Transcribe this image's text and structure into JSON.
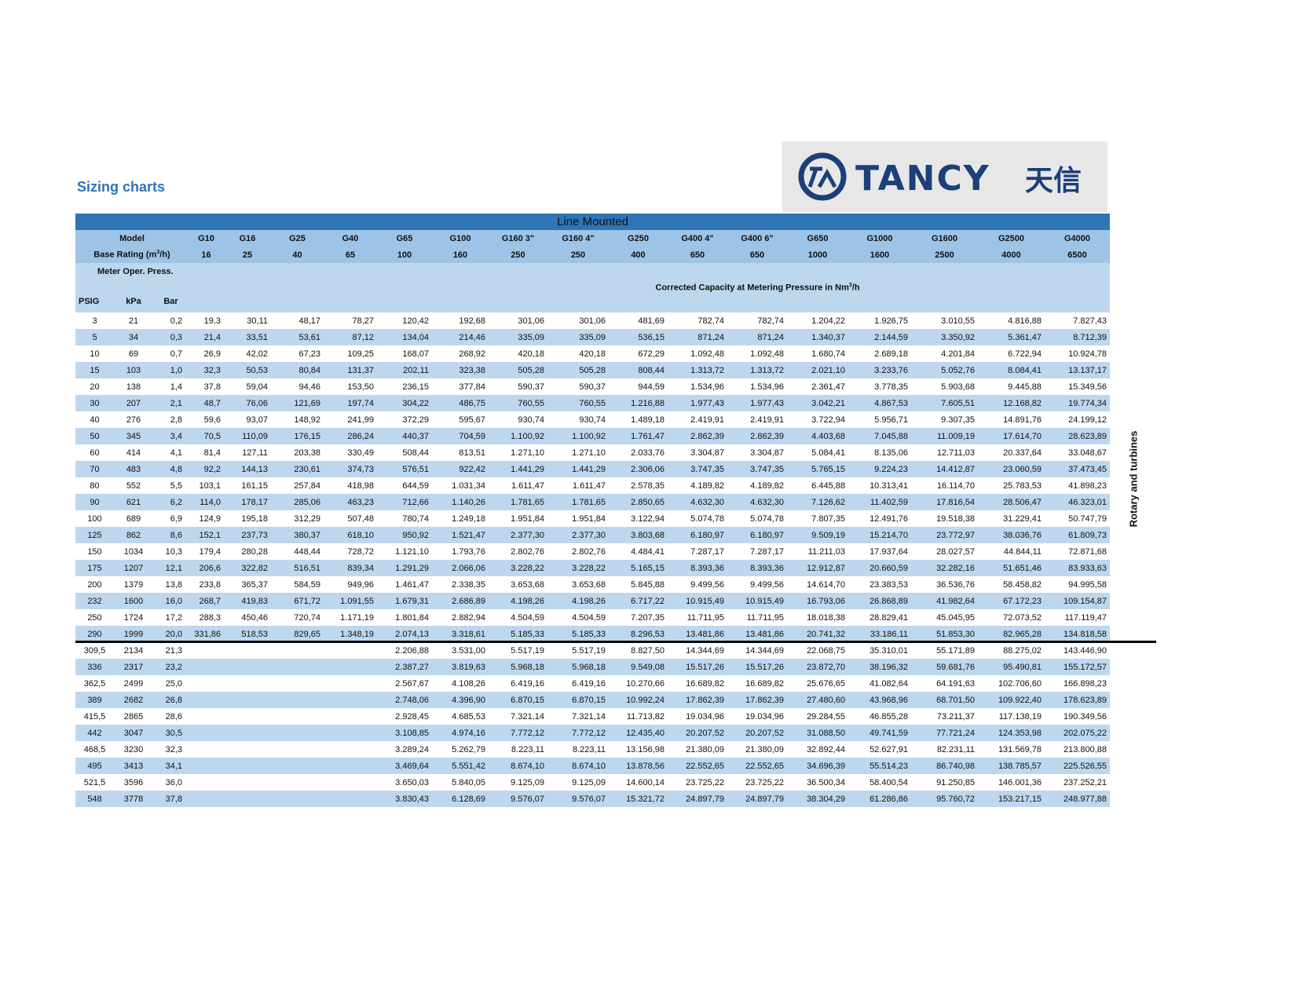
{
  "page_title": "Sizing charts",
  "logo": {
    "text": "TANCY 天信",
    "color": "#1c3f7a"
  },
  "side_label": "Rotary and turbines",
  "table": {
    "band_title": "Line Mounted",
    "model_label": "Model",
    "base_rating_label": "Base Rating (m³/h)",
    "models": [
      "G10",
      "G16",
      "G25",
      "G40",
      "G65",
      "G100",
      "G160 3\"",
      "G160 4\"",
      "G250",
      "G400 4\"",
      "G400 6\"",
      "G650",
      "G1000",
      "G1600",
      "G2500",
      "G4000"
    ],
    "base_ratings": [
      "16",
      "25",
      "40",
      "65",
      "100",
      "160",
      "250",
      "250",
      "400",
      "650",
      "650",
      "1000",
      "1600",
      "2500",
      "4000",
      "6500"
    ],
    "meter_oper_label": "Meter Oper. Press.",
    "col_psig": "PSIG",
    "col_kpa": "kPa",
    "col_bar": "Bar",
    "corrected_label": "Corrected Capacity at Metering Pressure in Nm³/h",
    "rows": [
      [
        "3",
        "21",
        "0,2",
        "19,3",
        "30,11",
        "48,17",
        "78,27",
        "120,42",
        "192,68",
        "301,06",
        "301,06",
        "481,69",
        "782,74",
        "782,74",
        "1.204,22",
        "1.926,75",
        "3.010,55",
        "4.816,88",
        "7.827,43"
      ],
      [
        "5",
        "34",
        "0,3",
        "21,4",
        "33,51",
        "53,61",
        "87,12",
        "134,04",
        "214,46",
        "335,09",
        "335,09",
        "536,15",
        "871,24",
        "871,24",
        "1.340,37",
        "2.144,59",
        "3.350,92",
        "5.361,47",
        "8.712,39"
      ],
      [
        "10",
        "69",
        "0,7",
        "26,9",
        "42,02",
        "67,23",
        "109,25",
        "168,07",
        "268,92",
        "420,18",
        "420,18",
        "672,29",
        "1.092,48",
        "1.092,48",
        "1.680,74",
        "2.689,18",
        "4.201,84",
        "6.722,94",
        "10.924,78"
      ],
      [
        "15",
        "103",
        "1,0",
        "32,3",
        "50,53",
        "80,84",
        "131,37",
        "202,11",
        "323,38",
        "505,28",
        "505,28",
        "808,44",
        "1.313,72",
        "1.313,72",
        "2.021,10",
        "3.233,76",
        "5.052,76",
        "8.084,41",
        "13.137,17"
      ],
      [
        "20",
        "138",
        "1,4",
        "37,8",
        "59,04",
        "94,46",
        "153,50",
        "236,15",
        "377,84",
        "590,37",
        "590,37",
        "944,59",
        "1.534,96",
        "1.534,96",
        "2.361,47",
        "3.778,35",
        "5.903,68",
        "9.445,88",
        "15.349,56"
      ],
      [
        "30",
        "207",
        "2,1",
        "48,7",
        "76,06",
        "121,69",
        "197,74",
        "304,22",
        "486,75",
        "760,55",
        "760,55",
        "1.216,88",
        "1.977,43",
        "1.977,43",
        "3.042,21",
        "4.867,53",
        "7.605,51",
        "12.168,82",
        "19.774,34"
      ],
      [
        "40",
        "276",
        "2,8",
        "59,6",
        "93,07",
        "148,92",
        "241,99",
        "372,29",
        "595,67",
        "930,74",
        "930,74",
        "1.489,18",
        "2.419,91",
        "2.419,91",
        "3.722,94",
        "5.956,71",
        "9.307,35",
        "14.891,76",
        "24.199,12"
      ],
      [
        "50",
        "345",
        "3,4",
        "70,5",
        "110,09",
        "176,15",
        "286,24",
        "440,37",
        "704,59",
        "1.100,92",
        "1.100,92",
        "1.761,47",
        "2.862,39",
        "2.862,39",
        "4.403,68",
        "7.045,88",
        "11.009,19",
        "17.614,70",
        "28.623,89"
      ],
      [
        "60",
        "414",
        "4,1",
        "81,4",
        "127,11",
        "203,38",
        "330,49",
        "508,44",
        "813,51",
        "1.271,10",
        "1.271,10",
        "2.033,76",
        "3.304,87",
        "3.304,87",
        "5.084,41",
        "8.135,06",
        "12.711,03",
        "20.337,64",
        "33.048,67"
      ],
      [
        "70",
        "483",
        "4,8",
        "92,2",
        "144,13",
        "230,61",
        "374,73",
        "576,51",
        "922,42",
        "1.441,29",
        "1.441,29",
        "2.306,06",
        "3.747,35",
        "3.747,35",
        "5.765,15",
        "9.224,23",
        "14.412,87",
        "23.060,59",
        "37.473,45"
      ],
      [
        "80",
        "552",
        "5,5",
        "103,1",
        "161,15",
        "257,84",
        "418,98",
        "644,59",
        "1.031,34",
        "1.611,47",
        "1.611,47",
        "2.578,35",
        "4.189,82",
        "4.189,82",
        "6.445,88",
        "10.313,41",
        "16.114,70",
        "25.783,53",
        "41.898,23"
      ],
      [
        "90",
        "621",
        "6,2",
        "114,0",
        "178,17",
        "285,06",
        "463,23",
        "712,66",
        "1.140,26",
        "1.781,65",
        "1.781,65",
        "2.850,65",
        "4.632,30",
        "4.632,30",
        "7.126,62",
        "11.402,59",
        "17.816,54",
        "28.506,47",
        "46.323,01"
      ],
      [
        "100",
        "689",
        "6,9",
        "124,9",
        "195,18",
        "312,29",
        "507,48",
        "780,74",
        "1.249,18",
        "1.951,84",
        "1.951,84",
        "3.122,94",
        "5.074,78",
        "5.074,78",
        "7.807,35",
        "12.491,76",
        "19.518,38",
        "31.229,41",
        "50.747,79"
      ],
      [
        "125",
        "862",
        "8,6",
        "152,1",
        "237,73",
        "380,37",
        "618,10",
        "950,92",
        "1.521,47",
        "2.377,30",
        "2.377,30",
        "3.803,68",
        "6.180,97",
        "6.180,97",
        "9.509,19",
        "15.214,70",
        "23.772,97",
        "38.036,76",
        "61.809,73"
      ],
      [
        "150",
        "1034",
        "10,3",
        "179,4",
        "280,28",
        "448,44",
        "728,72",
        "1.121,10",
        "1.793,76",
        "2.802,76",
        "2.802,76",
        "4.484,41",
        "7.287,17",
        "7.287,17",
        "11.211,03",
        "17.937,64",
        "28.027,57",
        "44.844,11",
        "72.871,68"
      ],
      [
        "175",
        "1207",
        "12,1",
        "206,6",
        "322,82",
        "516,51",
        "839,34",
        "1.291,29",
        "2.066,06",
        "3.228,22",
        "3.228,22",
        "5.165,15",
        "8.393,36",
        "8.393,36",
        "12.912,87",
        "20.660,59",
        "32.282,16",
        "51.651,46",
        "83.933,63"
      ],
      [
        "200",
        "1379",
        "13,8",
        "233,8",
        "365,37",
        "584,59",
        "949,96",
        "1.461,47",
        "2.338,35",
        "3.653,68",
        "3.653,68",
        "5.845,88",
        "9.499,56",
        "9.499,56",
        "14.614,70",
        "23.383,53",
        "36.536,76",
        "58.458,82",
        "94.995,58"
      ],
      [
        "232",
        "1600",
        "16,0",
        "268,7",
        "419,83",
        "671,72",
        "1.091,55",
        "1.679,31",
        "2.686,89",
        "4.198,26",
        "4.198,26",
        "6.717,22",
        "10.915,49",
        "10.915,49",
        "16.793,06",
        "26.868,89",
        "41.982,64",
        "67.172,23",
        "109.154,87"
      ],
      [
        "250",
        "1724",
        "17,2",
        "288,3",
        "450,46",
        "720,74",
        "1.171,19",
        "1.801,84",
        "2.882,94",
        "4.504,59",
        "4.504,59",
        "7.207,35",
        "11.711,95",
        "11.711,95",
        "18.018,38",
        "28.829,41",
        "45.045,95",
        "72.073,52",
        "117.119,47"
      ],
      [
        "290",
        "1999",
        "20,0",
        "331,86",
        "518,53",
        "829,65",
        "1.348,19",
        "2.074,13",
        "3.318,61",
        "5.185,33",
        "5.185,33",
        "8.296,53",
        "13.481,86",
        "13.481,86",
        "20.741,32",
        "33.186,11",
        "51.853,30",
        "82.965,28",
        "134.818,58"
      ],
      [
        "309,5",
        "2134",
        "21,3",
        "",
        "",
        "",
        "",
        "2.206,88",
        "3.531,00",
        "5.517,19",
        "5.517,19",
        "8.827,50",
        "14.344,69",
        "14.344,69",
        "22.068,75",
        "35.310,01",
        "55.171,89",
        "88.275,02",
        "143.446,90"
      ],
      [
        "336",
        "2317",
        "23,2",
        "",
        "",
        "",
        "",
        "2.387,27",
        "3.819,63",
        "5.968,18",
        "5.968,18",
        "9.549,08",
        "15.517,26",
        "15.517,26",
        "23.872,70",
        "38.196,32",
        "59.681,76",
        "95.490,81",
        "155.172,57"
      ],
      [
        "362,5",
        "2499",
        "25,0",
        "",
        "",
        "",
        "",
        "2.567,67",
        "4.108,26",
        "6.419,16",
        "6.419,16",
        "10.270,66",
        "16.689,82",
        "16.689,82",
        "25.676,65",
        "41.082,64",
        "64.191,63",
        "102.706,60",
        "166.898,23"
      ],
      [
        "389",
        "2682",
        "26,8",
        "",
        "",
        "",
        "",
        "2.748,06",
        "4.396,90",
        "6.870,15",
        "6.870,15",
        "10.992,24",
        "17.862,39",
        "17.862,39",
        "27.480,60",
        "43.968,96",
        "68.701,50",
        "109.922,40",
        "178.623,89"
      ],
      [
        "415,5",
        "2865",
        "28,6",
        "",
        "",
        "",
        "",
        "2.928,45",
        "4.685,53",
        "7.321,14",
        "7.321,14",
        "11.713,82",
        "19.034,96",
        "19.034,96",
        "29.284,55",
        "46.855,28",
        "73.211,37",
        "117.138,19",
        "190.349,56"
      ],
      [
        "442",
        "3047",
        "30,5",
        "",
        "",
        "",
        "",
        "3.108,85",
        "4.974,16",
        "7.772,12",
        "7.772,12",
        "12.435,40",
        "20.207,52",
        "20.207,52",
        "31.088,50",
        "49.741,59",
        "77.721,24",
        "124.353,98",
        "202.075,22"
      ],
      [
        "468,5",
        "3230",
        "32,3",
        "",
        "",
        "",
        "",
        "3.289,24",
        "5.262,79",
        "8.223,11",
        "8.223,11",
        "13.156,98",
        "21.380,09",
        "21.380,09",
        "32.892,44",
        "52.627,91",
        "82.231,11",
        "131.569,78",
        "213.800,88"
      ],
      [
        "495",
        "3413",
        "34,1",
        "",
        "",
        "",
        "",
        "3.469,64",
        "5.551,42",
        "8.674,10",
        "8.674,10",
        "13.878,56",
        "22.552,65",
        "22.552,65",
        "34.696,39",
        "55.514,23",
        "86.740,98",
        "138.785,57",
        "225.526,55"
      ],
      [
        "521,5",
        "3596",
        "36,0",
        "",
        "",
        "",
        "",
        "3.650,03",
        "5.840,05",
        "9.125,09",
        "9.125,09",
        "14.600,14",
        "23.725,22",
        "23.725,22",
        "36.500,34",
        "58.400,54",
        "91.250,85",
        "146.001,36",
        "237.252,21"
      ],
      [
        "548",
        "3778",
        "37,8",
        "",
        "",
        "",
        "",
        "3.830,43",
        "6.128,69",
        "9.576,07",
        "9.576,07",
        "15.321,72",
        "24.897,79",
        "24.897,79",
        "38.304,29",
        "61.286,86",
        "95.760,72",
        "153.217,15",
        "248.977,88"
      ]
    ]
  }
}
